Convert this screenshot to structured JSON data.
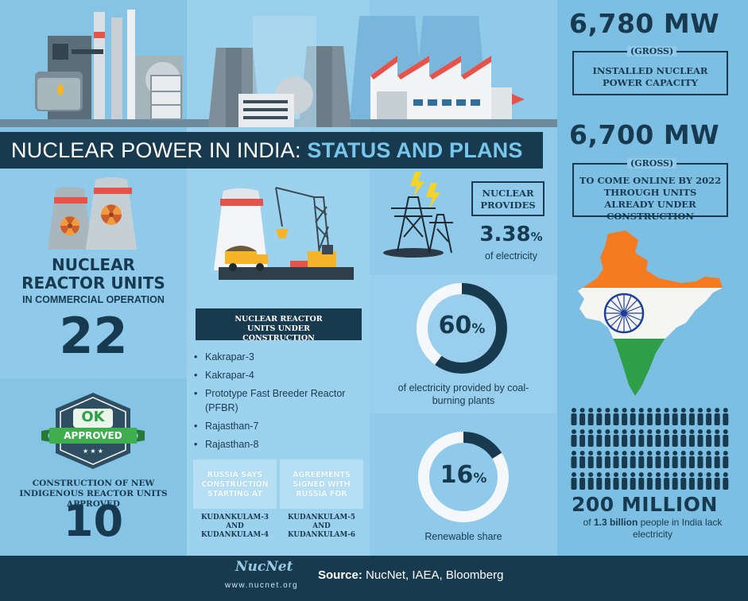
{
  "title": {
    "part1": "NUCLEAR POWER IN INDIA:",
    "part2": "STATUS AND PLANS"
  },
  "capacity": {
    "installed_value": "6,780 MW",
    "installed_gross": "(GROSS)",
    "installed_label": "INSTALLED NUCLEAR POWER CAPACITY",
    "upcoming_value": "6,700 MW",
    "upcoming_gross": "(GROSS)",
    "upcoming_label": "TO COME ONLINE BY 2022 THROUGH UNITS ALREADY UNDER CONSTRUCTION"
  },
  "operation": {
    "line1": "NUCLEAR",
    "line2": "REACTOR UNITS",
    "line3": "IN COMMERCIAL OPERATION",
    "count": "22"
  },
  "approved": {
    "badge_ok": "OK",
    "badge_label": "APPROVED",
    "stars": "★ ★ ★",
    "caption": "CONSTRUCTION OF NEW INDIGENOUS REACTOR UNITS APPROVED",
    "count": "10"
  },
  "construction": {
    "header": "NUCLEAR REACTOR UNITS UNDER CONSTRUCTION",
    "units": [
      "Kakrapar-3",
      "Kakrapar-4",
      "Prototype Fast Breeder Reactor (PFBR)",
      "Rajasthan-7",
      "Rajasthan-8"
    ]
  },
  "russia": {
    "box1": "RUSSIA SAYS CONSTRUCTION STARTING AT",
    "box2": "AGREEMENTS SIGNED WITH RUSSIA FOR",
    "units1": "KUDANKULAM-3 AND KUDANKULAM-4",
    "units2": "KUDANKULAM-5 AND KUDANKULAM-6"
  },
  "nuclear_share": {
    "label": "NUCLEAR PROVIDES",
    "value": "3.38",
    "suffix": "%",
    "caption": "of electricity"
  },
  "coal": {
    "value": "60",
    "suffix": "%",
    "fraction": 0.6,
    "caption": "of electricity provided by coal-burning plants"
  },
  "renewable": {
    "value": "16",
    "suffix": "%",
    "fraction": 0.16,
    "caption": "Renewable share"
  },
  "people": {
    "value": "200 MILLION",
    "caption_pre": "of ",
    "caption_bold": "1.3 billion",
    "caption_post": " people in India lack electricity"
  },
  "footer": {
    "source_label": "Source:",
    "source_text": " NucNet, IAEA, Bloomberg",
    "logo": "NucNet",
    "url": "www.nucnet.org"
  },
  "colors": {
    "dark_navy": "#183a4f",
    "background": "#8fcaea",
    "accent_blue": "#79c6ec",
    "saffron": "#f47b20",
    "green": "#2e9e48"
  }
}
